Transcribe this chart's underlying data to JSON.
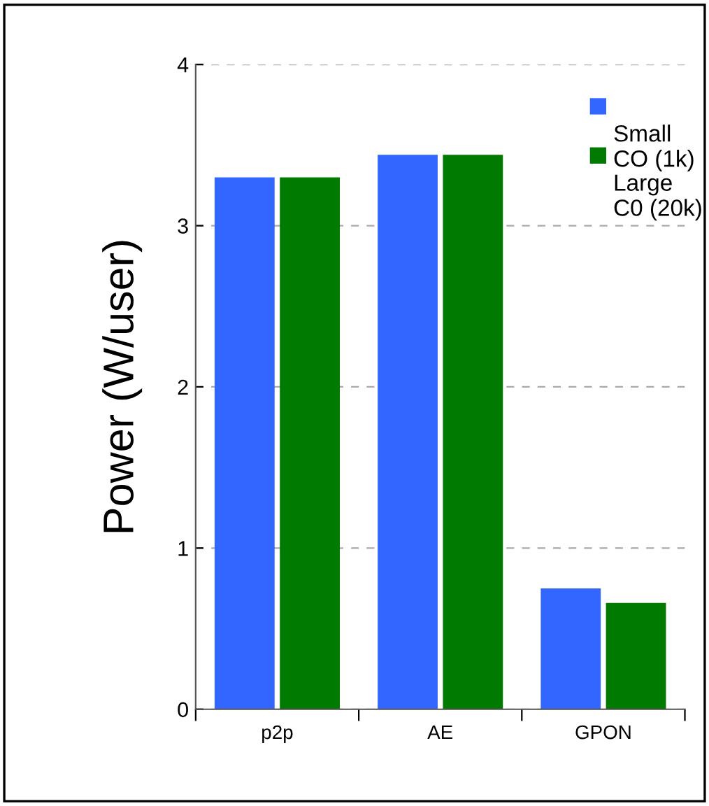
{
  "chart_data": {
    "type": "bar",
    "ylabel": "Power (W/user)",
    "categories": [
      "p2p",
      "AE",
      "GPON"
    ],
    "series": [
      {
        "name": "Small\nCO (1k)",
        "color": "#3366ff",
        "values": [
          3.3,
          3.44,
          0.75
        ]
      },
      {
        "name": "Large\nC0 (20k)",
        "color": "#007a00",
        "values": [
          3.3,
          3.44,
          0.66
        ]
      }
    ],
    "ylim": [
      0,
      4
    ],
    "yticks": [
      0,
      1,
      2,
      3,
      4
    ],
    "grid": "y",
    "legend": "top right"
  }
}
